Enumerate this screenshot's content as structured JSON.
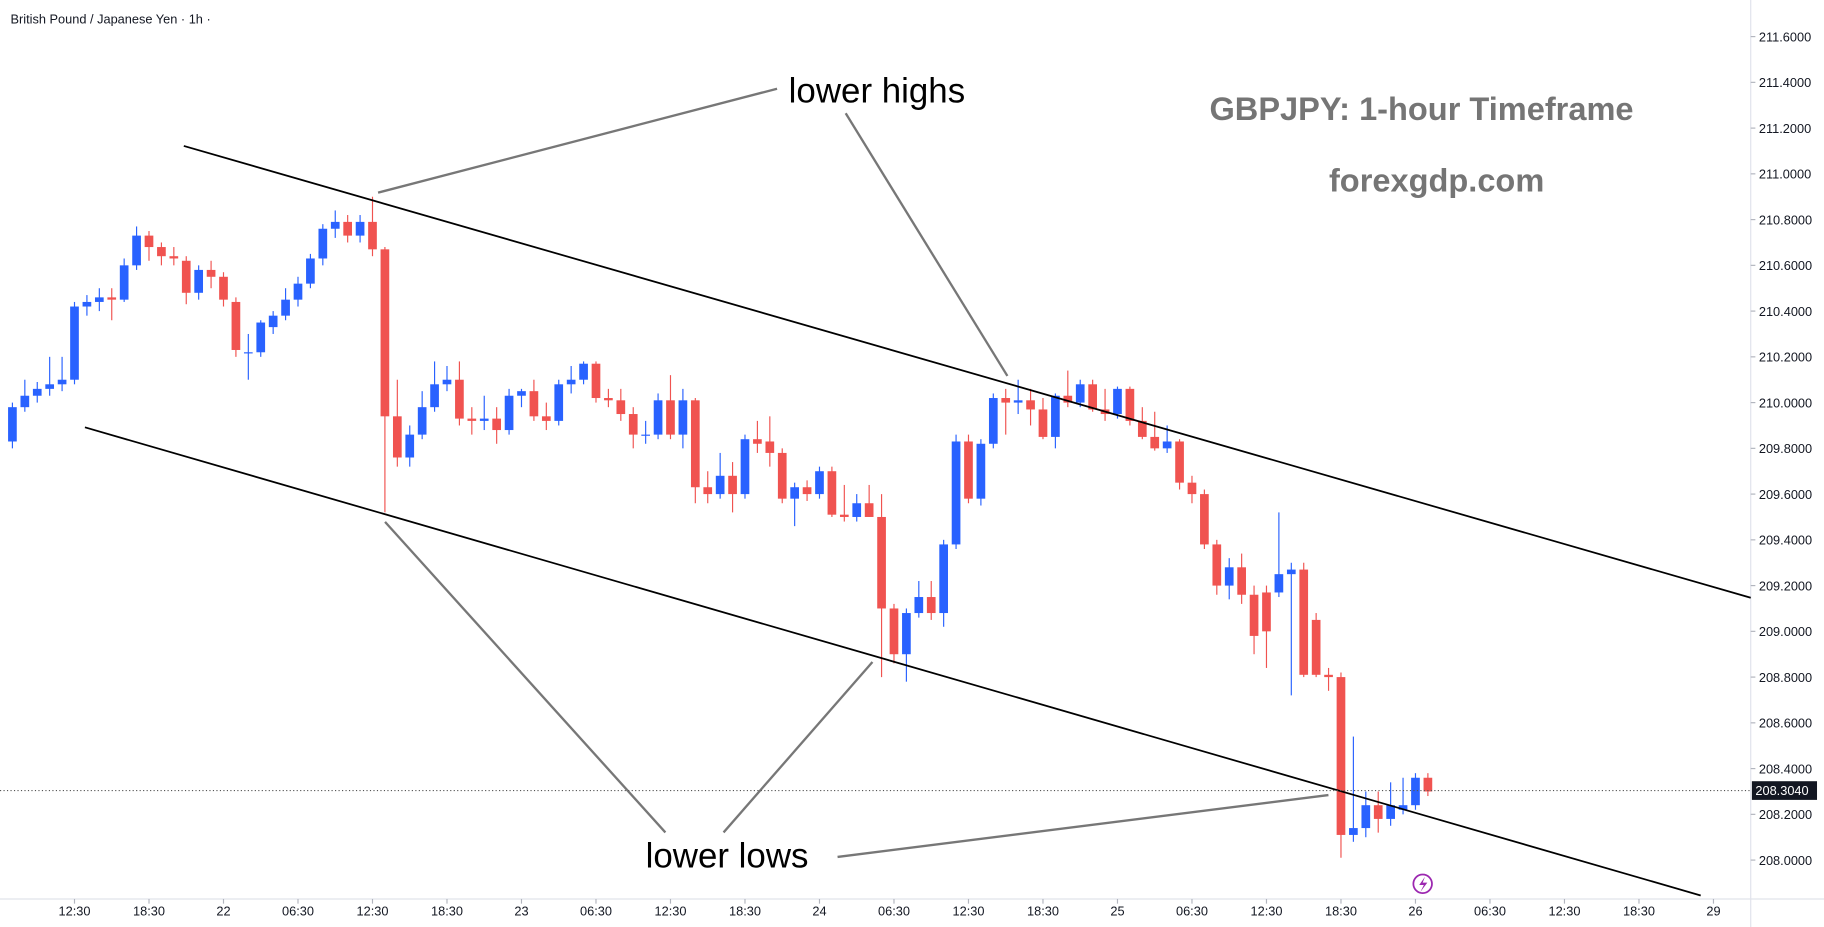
{
  "chart_data": {
    "type": "candlestick",
    "title": "British Pound / Japanese Yen · 1h ·",
    "annotations": {
      "highs": "lower highs",
      "lows": "lower lows",
      "heading": "GBPJPY: 1-hour Timeframe",
      "site": "forexgdp.com"
    },
    "up_color": "#2962ff",
    "down_color": "#f05350",
    "xlim": [
      6.5,
      147.5
    ],
    "xticks": [
      {
        "value": 12.5,
        "label": "12:30"
      },
      {
        "value": 18.5,
        "label": "18:30"
      },
      {
        "value": 24.5,
        "label": "22"
      },
      {
        "value": 30.5,
        "label": "06:30"
      },
      {
        "value": 36.5,
        "label": "12:30"
      },
      {
        "value": 42.5,
        "label": "18:30"
      },
      {
        "value": 48.5,
        "label": "23"
      },
      {
        "value": 54.5,
        "label": "06:30"
      },
      {
        "value": 60.5,
        "label": "12:30"
      },
      {
        "value": 66.5,
        "label": "18:30"
      },
      {
        "value": 72.5,
        "label": "24"
      },
      {
        "value": 78.5,
        "label": "06:30"
      },
      {
        "value": 84.5,
        "label": "12:30"
      },
      {
        "value": 90.5,
        "label": "18:30"
      },
      {
        "value": 96.5,
        "label": "25"
      },
      {
        "value": 102.5,
        "label": "06:30"
      },
      {
        "value": 108.5,
        "label": "12:30"
      },
      {
        "value": 114.5,
        "label": "18:30"
      },
      {
        "value": 120.5,
        "label": "26"
      },
      {
        "value": 126.5,
        "label": "06:30"
      },
      {
        "value": 132.5,
        "label": "12:30"
      },
      {
        "value": 138.5,
        "label": "18:30"
      },
      {
        "value": 144.5,
        "label": "29"
      }
    ],
    "ylim": [
      207.83,
      211.76
    ],
    "yticks": [
      {
        "value": 208.0,
        "label": "208.0000"
      },
      {
        "value": 208.2,
        "label": "208.2000"
      },
      {
        "value": 208.4,
        "label": "208.4000"
      },
      {
        "value": 208.6,
        "label": "208.6000"
      },
      {
        "value": 208.8,
        "label": "208.8000"
      },
      {
        "value": 209.0,
        "label": "209.0000"
      },
      {
        "value": 209.2,
        "label": "209.2000"
      },
      {
        "value": 209.4,
        "label": "209.4000"
      },
      {
        "value": 209.6,
        "label": "209.6000"
      },
      {
        "value": 209.8,
        "label": "209.8000"
      },
      {
        "value": 210.0,
        "label": "210.0000"
      },
      {
        "value": 210.2,
        "label": "210.2000"
      },
      {
        "value": 210.4,
        "label": "210.4000"
      },
      {
        "value": 210.6,
        "label": "210.6000"
      },
      {
        "value": 210.8,
        "label": "210.8000"
      },
      {
        "value": 211.0,
        "label": "211.0000"
      },
      {
        "value": 211.2,
        "label": "211.2000"
      },
      {
        "value": 211.4,
        "label": "211.4000"
      },
      {
        "value": 211.6,
        "label": "211.6000"
      }
    ],
    "last_price": {
      "value": 208.304,
      "label": "208.3040"
    },
    "candles": [
      [
        209.83,
        210.0,
        209.8,
        209.98
      ],
      [
        209.98,
        210.1,
        209.96,
        210.03
      ],
      [
        210.03,
        210.09,
        210.0,
        210.06
      ],
      [
        210.06,
        210.2,
        210.03,
        210.08
      ],
      [
        210.08,
        210.2,
        210.05,
        210.1
      ],
      [
        210.1,
        210.44,
        210.08,
        210.42
      ],
      [
        210.42,
        210.47,
        210.38,
        210.44
      ],
      [
        210.44,
        210.5,
        210.4,
        210.46
      ],
      [
        210.46,
        210.5,
        210.36,
        210.45
      ],
      [
        210.45,
        210.63,
        210.44,
        210.6
      ],
      [
        210.6,
        210.77,
        210.58,
        210.73
      ],
      [
        210.73,
        210.75,
        210.62,
        210.68
      ],
      [
        210.68,
        210.7,
        210.6,
        210.64
      ],
      [
        210.64,
        210.68,
        210.6,
        210.63
      ],
      [
        210.62,
        210.64,
        210.43,
        210.48
      ],
      [
        210.48,
        210.6,
        210.45,
        210.58
      ],
      [
        210.58,
        210.62,
        210.5,
        210.55
      ],
      [
        210.55,
        210.57,
        210.42,
        210.45
      ],
      [
        210.44,
        210.46,
        210.2,
        210.23
      ],
      [
        210.22,
        210.3,
        210.1,
        210.22
      ],
      [
        210.22,
        210.36,
        210.2,
        210.35
      ],
      [
        210.33,
        210.4,
        210.3,
        210.38
      ],
      [
        210.38,
        210.5,
        210.36,
        210.45
      ],
      [
        210.45,
        210.55,
        210.42,
        210.52
      ],
      [
        210.52,
        210.65,
        210.5,
        210.63
      ],
      [
        210.63,
        210.78,
        210.6,
        210.76
      ],
      [
        210.76,
        210.84,
        210.72,
        210.79
      ],
      [
        210.79,
        210.82,
        210.7,
        210.73
      ],
      [
        210.73,
        210.82,
        210.7,
        210.79
      ],
      [
        210.79,
        210.9,
        210.64,
        210.67
      ],
      [
        210.67,
        210.68,
        209.52,
        209.94
      ],
      [
        209.94,
        210.1,
        209.72,
        209.76
      ],
      [
        209.76,
        209.9,
        209.72,
        209.86
      ],
      [
        209.86,
        210.05,
        209.84,
        209.98
      ],
      [
        209.98,
        210.18,
        209.96,
        210.08
      ],
      [
        210.08,
        210.16,
        210.05,
        210.1
      ],
      [
        210.1,
        210.18,
        209.9,
        209.93
      ],
      [
        209.93,
        209.98,
        209.86,
        209.92
      ],
      [
        209.92,
        210.03,
        209.88,
        209.93
      ],
      [
        209.93,
        209.98,
        209.82,
        209.88
      ],
      [
        209.88,
        210.06,
        209.86,
        210.03
      ],
      [
        210.03,
        210.06,
        209.98,
        210.05
      ],
      [
        210.05,
        210.1,
        209.92,
        209.94
      ],
      [
        209.94,
        210.0,
        209.88,
        209.92
      ],
      [
        209.92,
        210.1,
        209.9,
        210.08
      ],
      [
        210.08,
        210.16,
        210.04,
        210.1
      ],
      [
        210.1,
        210.18,
        210.08,
        210.17
      ],
      [
        210.17,
        210.18,
        210.0,
        210.02
      ],
      [
        210.02,
        210.06,
        209.98,
        210.01
      ],
      [
        210.01,
        210.06,
        209.92,
        209.95
      ],
      [
        209.95,
        209.98,
        209.8,
        209.86
      ],
      [
        209.86,
        209.92,
        209.82,
        209.86
      ],
      [
        209.86,
        210.04,
        209.84,
        210.01
      ],
      [
        210.01,
        210.12,
        209.84,
        209.86
      ],
      [
        209.86,
        210.06,
        209.8,
        210.01
      ],
      [
        210.01,
        210.02,
        209.56,
        209.63
      ],
      [
        209.63,
        209.7,
        209.56,
        209.6
      ],
      [
        209.6,
        209.78,
        209.58,
        209.68
      ],
      [
        209.68,
        209.74,
        209.52,
        209.6
      ],
      [
        209.6,
        209.86,
        209.58,
        209.84
      ],
      [
        209.84,
        209.92,
        209.78,
        209.82
      ],
      [
        209.83,
        209.94,
        209.72,
        209.78
      ],
      [
        209.78,
        209.8,
        209.56,
        209.58
      ],
      [
        209.58,
        209.65,
        209.46,
        209.63
      ],
      [
        209.63,
        209.66,
        209.57,
        209.6
      ],
      [
        209.6,
        209.72,
        209.58,
        209.7
      ],
      [
        209.7,
        209.72,
        209.5,
        209.51
      ],
      [
        209.51,
        209.64,
        209.48,
        209.5
      ],
      [
        209.5,
        209.6,
        209.48,
        209.56
      ],
      [
        209.56,
        209.64,
        209.5,
        209.5
      ],
      [
        209.5,
        209.6,
        208.8,
        209.1
      ],
      [
        209.1,
        209.12,
        208.86,
        208.9
      ],
      [
        208.9,
        209.1,
        208.78,
        209.08
      ],
      [
        209.08,
        209.22,
        209.06,
        209.15
      ],
      [
        209.15,
        209.22,
        209.05,
        209.08
      ],
      [
        209.08,
        209.4,
        209.02,
        209.38
      ],
      [
        209.38,
        209.86,
        209.36,
        209.83
      ],
      [
        209.83,
        209.86,
        209.56,
        209.58
      ],
      [
        209.58,
        209.84,
        209.55,
        209.82
      ],
      [
        209.82,
        210.04,
        209.8,
        210.02
      ],
      [
        210.02,
        210.06,
        209.86,
        210.0
      ],
      [
        210.0,
        210.1,
        209.95,
        210.01
      ],
      [
        210.01,
        210.06,
        209.9,
        209.97
      ],
      [
        209.97,
        210.02,
        209.84,
        209.85
      ],
      [
        209.85,
        210.04,
        209.8,
        210.03
      ],
      [
        210.03,
        210.14,
        209.98,
        210.0
      ],
      [
        210.0,
        210.1,
        209.98,
        210.08
      ],
      [
        210.08,
        210.1,
        209.96,
        209.97
      ],
      [
        209.97,
        210.06,
        209.92,
        209.95
      ],
      [
        209.95,
        210.07,
        209.93,
        210.06
      ],
      [
        210.06,
        210.07,
        209.9,
        209.92
      ],
      [
        209.92,
        209.98,
        209.84,
        209.85
      ],
      [
        209.85,
        209.96,
        209.79,
        209.8
      ],
      [
        209.8,
        209.9,
        209.78,
        209.83
      ],
      [
        209.83,
        209.84,
        209.62,
        209.65
      ],
      [
        209.65,
        209.68,
        209.56,
        209.6
      ],
      [
        209.6,
        209.62,
        209.36,
        209.38
      ],
      [
        209.38,
        209.4,
        209.16,
        209.2
      ],
      [
        209.2,
        209.32,
        209.14,
        209.28
      ],
      [
        209.28,
        209.34,
        209.12,
        209.16
      ],
      [
        209.16,
        209.2,
        208.9,
        208.98
      ],
      [
        209.17,
        209.2,
        208.84,
        209.0
      ],
      [
        209.17,
        209.52,
        209.15,
        209.25
      ],
      [
        209.25,
        209.3,
        208.72,
        209.27
      ],
      [
        209.27,
        209.3,
        208.8,
        208.81
      ],
      [
        209.05,
        209.08,
        208.8,
        208.81
      ],
      [
        208.81,
        208.84,
        208.74,
        208.8
      ],
      [
        208.8,
        208.82,
        208.01,
        208.11
      ],
      [
        208.11,
        208.54,
        208.08,
        208.14
      ],
      [
        208.14,
        208.3,
        208.1,
        208.24
      ],
      [
        208.24,
        208.3,
        208.12,
        208.18
      ],
      [
        208.18,
        208.34,
        208.15,
        208.24
      ],
      [
        208.22,
        208.36,
        208.2,
        208.24
      ],
      [
        208.24,
        208.38,
        208.22,
        208.36
      ],
      [
        208.36,
        208.38,
        208.28,
        208.3
      ]
    ]
  }
}
